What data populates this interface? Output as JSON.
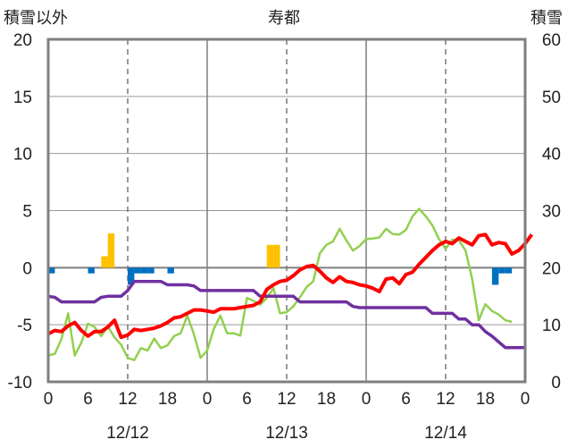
{
  "chart_data": {
    "type": "line",
    "title": "寿都",
    "left_axis_label": "積雪以外",
    "right_axis_label": "積雪",
    "left_ylim": [
      -10,
      20
    ],
    "left_yticks": [
      "20",
      "15",
      "10",
      "5",
      "0",
      "-5",
      "-10"
    ],
    "right_ylim": [
      0,
      60
    ],
    "right_yticks": [
      "60",
      "50",
      "40",
      "30",
      "20",
      "10",
      "0"
    ],
    "xlim": [
      0,
      72
    ],
    "x_tick_labels": [
      "0",
      "6",
      "12",
      "18",
      "0",
      "6",
      "12",
      "18",
      "0",
      "6",
      "12",
      "18",
      "0"
    ],
    "date_labels": [
      {
        "text": "12/12",
        "at": 12
      },
      {
        "text": "12/13",
        "at": 36
      },
      {
        "text": "12/14",
        "at": 60
      }
    ],
    "grid": true,
    "colors": {
      "temperature": "#ff0000",
      "dew_or_min": "#7030a0",
      "snow_depth": "#92d050",
      "snowfall_bars": "#ffc000",
      "negative_bars": "#0070c0"
    },
    "series": [
      {
        "key": "temperature",
        "axis": "left",
        "values": [
          -5.8,
          -5.5,
          -5.6,
          -5.1,
          -4.8,
          -5.5,
          -6.0,
          -5.6,
          -5.6,
          -5.2,
          -4.6,
          -6.1,
          -5.9,
          -5.4,
          -5.5,
          -5.4,
          -5.3,
          -5.1,
          -4.8,
          -4.4,
          -4.3,
          -4.0,
          -3.7,
          -3.7,
          -3.8,
          -3.9,
          -3.6,
          -3.6,
          -3.6,
          -3.5,
          -3.4,
          -3.3,
          -3.0,
          -1.9,
          -1.5,
          -1.2,
          -1.1,
          -0.7,
          -0.2,
          0.1,
          0.2,
          -0.3,
          -0.9,
          -1.3,
          -0.8,
          -1.2,
          -1.3,
          -1.5,
          -1.6,
          -1.8,
          -2.1,
          -1.0,
          -0.9,
          -1.4,
          -0.6,
          -0.4,
          0.3,
          0.9,
          1.5,
          2.0,
          2.3,
          2.1,
          2.6,
          2.3,
          2.0,
          2.8,
          2.9,
          2.0,
          2.2,
          2.1,
          1.2,
          1.5,
          2.1,
          2.9
        ]
      },
      {
        "key": "dew_or_min",
        "axis": "left",
        "values": [
          -2.5,
          -2.6,
          -3.0,
          -3.0,
          -3.0,
          -3.0,
          -3.0,
          -3.0,
          -2.6,
          -2.5,
          -2.5,
          -2.5,
          -2.0,
          -1.2,
          -1.2,
          -1.2,
          -1.2,
          -1.2,
          -1.5,
          -1.5,
          -1.5,
          -1.5,
          -1.6,
          -2.0,
          -2.0,
          -2.0,
          -2.0,
          -2.0,
          -2.0,
          -2.0,
          -2.0,
          -2.0,
          -2.5,
          -2.5,
          -2.5,
          -2.5,
          -2.5,
          -2.5,
          -3.0,
          -3.0,
          -3.0,
          -3.0,
          -3.0,
          -3.0,
          -3.0,
          -3.0,
          -3.4,
          -3.5,
          -3.5,
          -3.5,
          -3.5,
          -3.5,
          -3.5,
          -3.5,
          -3.5,
          -3.5,
          -3.5,
          -3.5,
          -4.0,
          -4.0,
          -4.0,
          -4.0,
          -4.5,
          -4.5,
          -5.0,
          -5.0,
          -5.6,
          -6.0,
          -6.5,
          -7.0,
          -7.0,
          -7.0,
          -7.0
        ]
      },
      {
        "key": "snow_depth",
        "axis": "right",
        "values": [
          4.6,
          4.9,
          7.5,
          12.0,
          4.6,
          6.9,
          10.2,
          9.6,
          8.0,
          9.7,
          7.8,
          6.5,
          4.2,
          3.8,
          5.9,
          5.5,
          7.6,
          5.9,
          6.4,
          8.0,
          8.5,
          11.6,
          8.3,
          4.2,
          5.5,
          9.3,
          11.6,
          8.5,
          8.5,
          8.1,
          14.7,
          14.2,
          13.5,
          14.7,
          16.4,
          12.0,
          12.2,
          13.2,
          14.8,
          16.6,
          17.6,
          22.5,
          24.0,
          24.6,
          26.8,
          24.8,
          23.0,
          23.8,
          25.0,
          25.1,
          25.3,
          26.8,
          25.9,
          25.8,
          26.6,
          29.0,
          30.3,
          29.0,
          27.4,
          25.0,
          23.3,
          24.9,
          24.8,
          23.0,
          18.0,
          10.8,
          13.6,
          12.4,
          11.8,
          10.8,
          10.5
        ]
      }
    ],
    "bars_up": {
      "axis": "left",
      "items": [
        {
          "x": 9,
          "value": 1.0
        },
        {
          "x": 10,
          "value": 3.0
        },
        {
          "x": 34,
          "value": 2.0
        },
        {
          "x": 35,
          "value": 2.0
        }
      ]
    },
    "bars_down": {
      "axis": "left",
      "items": [
        {
          "x": 1,
          "value": -0.5
        },
        {
          "x": 7,
          "value": -0.5
        },
        {
          "x": 13,
          "value": -1.5
        },
        {
          "x": 14,
          "value": -0.5
        },
        {
          "x": 15,
          "value": -0.5
        },
        {
          "x": 16,
          "value": -0.5
        },
        {
          "x": 19,
          "value": -0.5
        },
        {
          "x": 68,
          "value": -1.5
        },
        {
          "x": 69,
          "value": -0.5
        },
        {
          "x": 70,
          "value": -0.5
        }
      ]
    }
  }
}
